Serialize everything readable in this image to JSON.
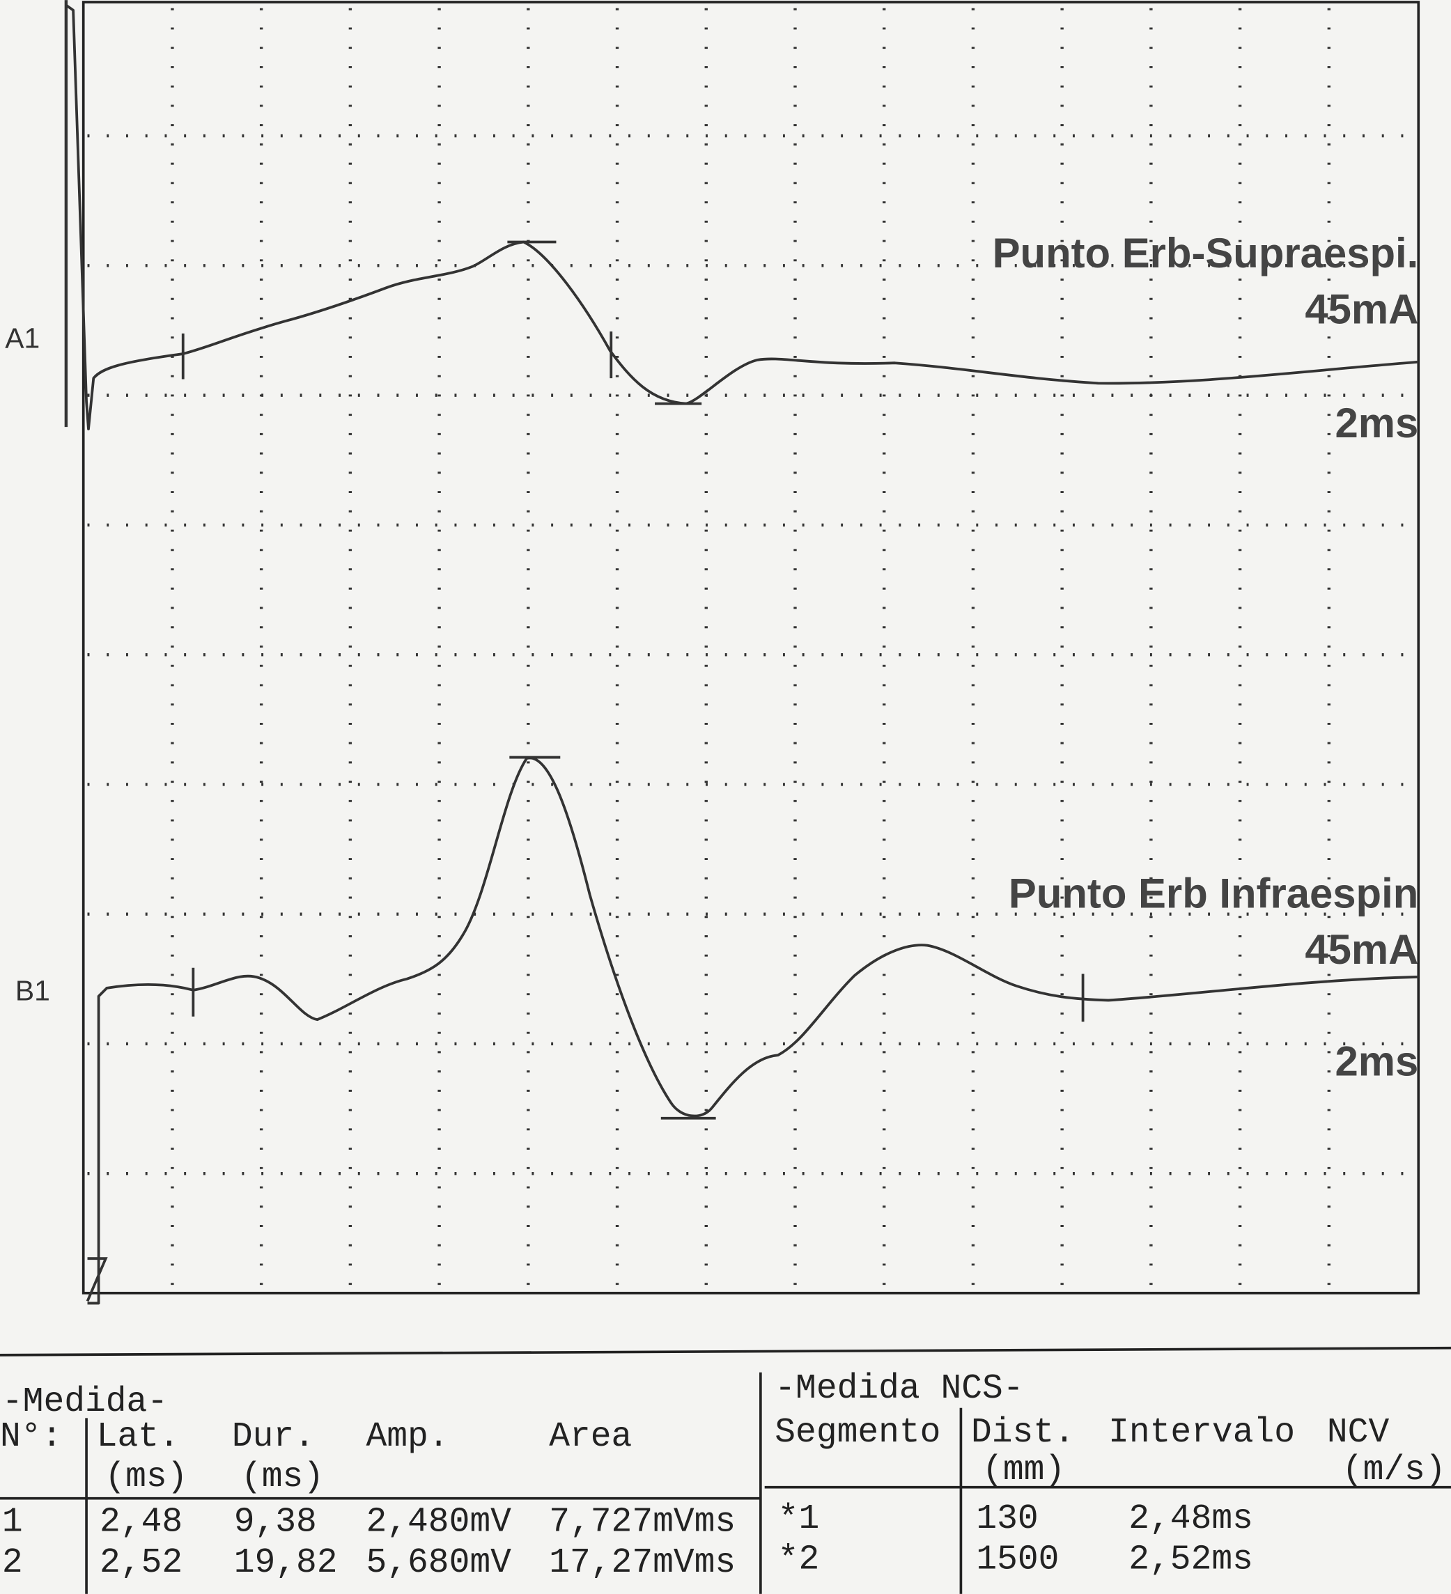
{
  "traces": [
    {
      "channel": "A1",
      "site": "Punto Erb-Supraespi.",
      "intensity": "45mA",
      "sweep": "2ms"
    },
    {
      "channel": "B1",
      "site": "Punto Erb Infraespin",
      "intensity": "45mA",
      "sweep": "2ms"
    }
  ],
  "table": {
    "title": "-Medida-",
    "headers": [
      "N°:",
      "Lat.",
      "Dur.",
      "Amp.",
      "Area"
    ],
    "units": [
      "(ms)",
      "(ms)"
    ],
    "rows": [
      [
        "1",
        "2,48",
        "9,38",
        "2,480mV",
        "7,727mVms"
      ],
      [
        "2",
        "2,52",
        "19,82",
        "5,680mV",
        "17,27mVms"
      ]
    ]
  },
  "ncs": {
    "title": "-Medida NCS-",
    "headers": [
      "Segmento",
      "Dist.",
      "Intervalo",
      "NCV"
    ],
    "units": [
      "(mm)",
      "(m/s)"
    ],
    "rows": [
      [
        "*1",
        "130",
        "2,48ms"
      ],
      [
        "*2",
        "1500",
        "2,52ms"
      ]
    ]
  }
}
